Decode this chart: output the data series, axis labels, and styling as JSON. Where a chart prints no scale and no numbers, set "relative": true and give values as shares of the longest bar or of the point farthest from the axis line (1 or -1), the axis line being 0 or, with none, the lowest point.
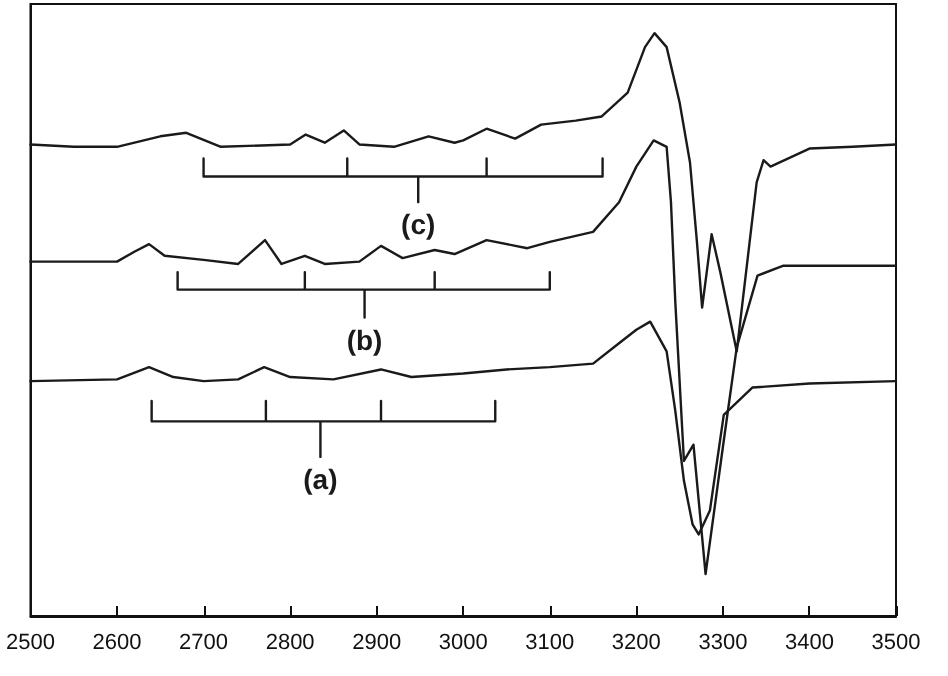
{
  "chart_data": {
    "type": "line",
    "relative": true,
    "tick_labels": "x",
    "grid": false,
    "marker": "none",
    "line_style": "solid",
    "xlim": [
      2500,
      3500
    ],
    "xticks": [
      2500,
      2600,
      2700,
      2800,
      2900,
      3000,
      3100,
      3200,
      3300,
      3400,
      3500
    ],
    "series": [
      {
        "color": "#1a1a1a",
        "x": [
          2500,
          2550,
          2600,
          2650,
          2680,
          2720,
          2800,
          2818,
          2840,
          2862,
          2880,
          2920,
          2960,
          2990,
          3000,
          3027,
          3060,
          3090,
          3130,
          3160,
          3190,
          3210,
          3221,
          3235,
          3250,
          3262,
          3270,
          3276,
          3287,
          3297,
          3316,
          3339,
          3347,
          3355,
          3400,
          3450,
          3500
        ],
        "values": [
          0.809,
          0.805,
          0.805,
          0.823,
          0.829,
          0.805,
          0.809,
          0.826,
          0.812,
          0.833,
          0.809,
          0.805,
          0.823,
          0.812,
          0.816,
          0.836,
          0.819,
          0.843,
          0.85,
          0.857,
          0.898,
          0.976,
          1.0,
          0.976,
          0.881,
          0.778,
          0.642,
          0.529,
          0.655,
          0.59,
          0.454,
          0.744,
          0.782,
          0.771,
          0.802,
          0.805,
          0.809
        ]
      },
      {
        "color": "#1a1a1a",
        "x": [
          2500,
          2600,
          2620,
          2637,
          2655,
          2700,
          2740,
          2771,
          2790,
          2817,
          2840,
          2880,
          2905,
          2930,
          2967,
          2990,
          3027,
          3074,
          3100,
          3150,
          3180,
          3200,
          3220,
          3235,
          3240,
          3245,
          3255,
          3266,
          3280,
          3300,
          3316,
          3340,
          3370,
          3400,
          3500
        ],
        "values": [
          0.608,
          0.608,
          0.625,
          0.638,
          0.618,
          0.611,
          0.604,
          0.645,
          0.604,
          0.618,
          0.604,
          0.608,
          0.635,
          0.614,
          0.628,
          0.621,
          0.645,
          0.631,
          0.642,
          0.659,
          0.71,
          0.771,
          0.816,
          0.805,
          0.71,
          0.539,
          0.266,
          0.294,
          0.072,
          0.29,
          0.461,
          0.584,
          0.601,
          0.601,
          0.601
        ]
      },
      {
        "color": "#1a1a1a",
        "x": [
          2500,
          2600,
          2637,
          2665,
          2700,
          2740,
          2770,
          2800,
          2850,
          2905,
          2940,
          3000,
          3050,
          3100,
          3150,
          3180,
          3200,
          3216,
          3235,
          3245,
          3255,
          3265,
          3272,
          3285,
          3301,
          3334,
          3400,
          3500
        ],
        "values": [
          0.403,
          0.406,
          0.427,
          0.41,
          0.403,
          0.406,
          0.427,
          0.41,
          0.406,
          0.423,
          0.41,
          0.416,
          0.423,
          0.427,
          0.433,
          0.468,
          0.491,
          0.505,
          0.454,
          0.352,
          0.232,
          0.157,
          0.14,
          0.181,
          0.345,
          0.392,
          0.399,
          0.403
        ]
      },
      {
        "name": "(c)",
        "color": "#1a1a1a",
        "x": [
          2700,
          2700,
          2866,
          2866,
          2866,
          2948,
          2948,
          2948,
          3027,
          3027,
          3027,
          3161,
          3161
        ],
        "values": [
          0.785,
          0.754,
          0.754,
          0.785,
          0.754,
          0.754,
          0.71,
          0.754,
          0.754,
          0.785,
          0.754,
          0.754,
          0.785
        ]
      },
      {
        "name": "(b)",
        "color": "#1a1a1a",
        "x": [
          2670,
          2670,
          2817,
          2817,
          2817,
          2886,
          2886,
          2886,
          2967,
          2967,
          2967,
          3100,
          3100
        ],
        "values": [
          0.59,
          0.56,
          0.56,
          0.59,
          0.56,
          0.56,
          0.512,
          0.56,
          0.56,
          0.59,
          0.56,
          0.56,
          0.59
        ]
      },
      {
        "name": "(a)",
        "color": "#1a1a1a",
        "x": [
          2640,
          2640,
          2772,
          2772,
          2772,
          2835,
          2835,
          2835,
          2905,
          2905,
          2905,
          3037,
          3037
        ],
        "values": [
          0.369,
          0.334,
          0.334,
          0.369,
          0.334,
          0.334,
          0.273,
          0.334,
          0.334,
          0.369,
          0.334,
          0.334,
          0.369
        ]
      }
    ]
  }
}
